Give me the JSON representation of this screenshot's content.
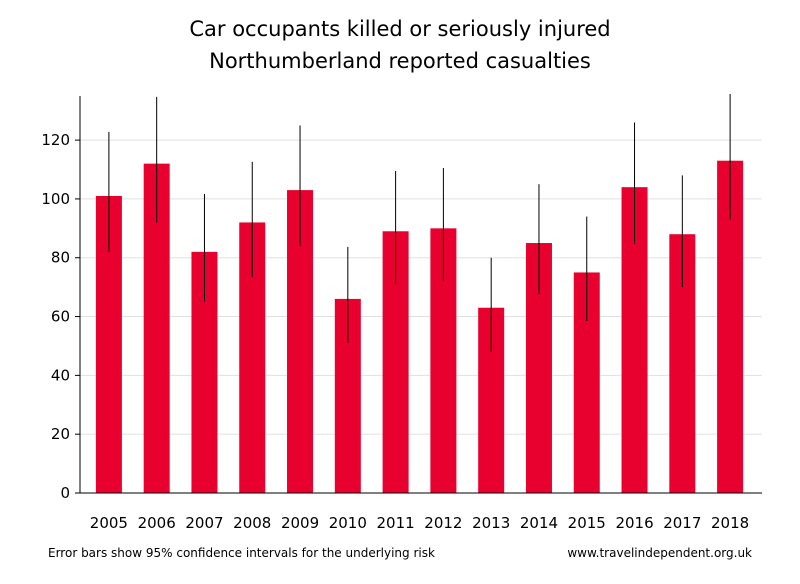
{
  "chart_data": {
    "type": "bar",
    "title": [
      "Car occupants killed or seriously injured",
      "Northumberland reported casualties"
    ],
    "categories": [
      "2005",
      "2006",
      "2007",
      "2008",
      "2009",
      "2010",
      "2011",
      "2012",
      "2013",
      "2014",
      "2015",
      "2016",
      "2017",
      "2018"
    ],
    "values": [
      101,
      112,
      82,
      92,
      103,
      66,
      89,
      90,
      63,
      85,
      75,
      104,
      88,
      113
    ],
    "ci_low": [
      82,
      92,
      65,
      73.5,
      84,
      51,
      71,
      72,
      48,
      67.7,
      58.5,
      84.7,
      70,
      93
    ],
    "ci_high": [
      122.8,
      134.7,
      101.7,
      112.6,
      125,
      83.7,
      109.5,
      110.5,
      80,
      105,
      94,
      126,
      108,
      135.7
    ],
    "color": "#e8002f",
    "ylim": [
      0,
      135
    ],
    "yticks": [
      0,
      20,
      40,
      60,
      80,
      100,
      120
    ],
    "grid": true,
    "footnote": "Error bars show 95% confidence intervals for the underlying risk",
    "source": "www.travelindependent.org.uk"
  }
}
